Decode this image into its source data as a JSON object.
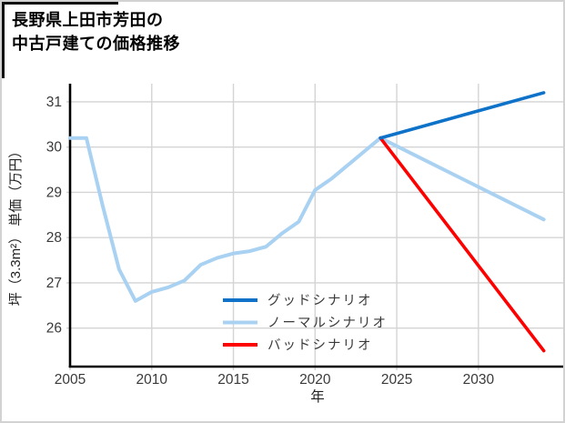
{
  "title": {
    "line1": "長野県上田市芳田の",
    "line2": "中古戸建ての価格推移"
  },
  "chart_data": {
    "type": "line",
    "title": "長野県上田市芳田の中古戸建ての価格推移",
    "xlabel": "年",
    "ylabel": "坪（3.3m²） 単価（万円）",
    "xlim": [
      2005,
      2035.3
    ],
    "ylim": [
      25.15,
      31.4
    ],
    "x_ticks": [
      2005,
      2010,
      2015,
      2020,
      2025,
      2030
    ],
    "y_ticks": [
      26,
      27,
      28,
      29,
      30,
      31
    ],
    "grid": true,
    "legend_position": "lower center-right, no frame",
    "colors": {
      "grid": "#d4d4d4",
      "axis": "#000000",
      "tick_label": "#3a3a3a",
      "good": "#0d72c8",
      "normal": "#a9d1f2",
      "bad": "#ff0000"
    },
    "series": [
      {
        "name": "ノーマルシナリオ",
        "color": "#a9d1f2",
        "width": 4,
        "x": [
          2005,
          2006,
          2007,
          2008,
          2009,
          2010,
          2011,
          2012,
          2013,
          2014,
          2015,
          2016,
          2017,
          2018,
          2019,
          2020,
          2021,
          2022,
          2023,
          2024,
          2034
        ],
        "values": [
          30.2,
          30.2,
          28.7,
          27.3,
          26.6,
          26.8,
          26.9,
          27.05,
          27.4,
          27.55,
          27.65,
          27.7,
          27.8,
          28.1,
          28.35,
          29.05,
          29.3,
          29.6,
          29.9,
          30.2,
          28.4
        ]
      },
      {
        "name": "バッドシナリオ",
        "color": "#ff0000",
        "width": 3.6,
        "x": [
          2024,
          2034
        ],
        "values": [
          30.2,
          25.5
        ]
      },
      {
        "name": "グッドシナリオ",
        "color": "#0d72c8",
        "width": 3.6,
        "x": [
          2024,
          2034
        ],
        "values": [
          30.2,
          31.2
        ]
      }
    ],
    "legend": [
      {
        "label": "グッドシナリオ",
        "color": "#0d72c8"
      },
      {
        "label": "ノーマルシナリオ",
        "color": "#a9d1f2"
      },
      {
        "label": "バッドシナリオ",
        "color": "#ff0000"
      }
    ]
  }
}
